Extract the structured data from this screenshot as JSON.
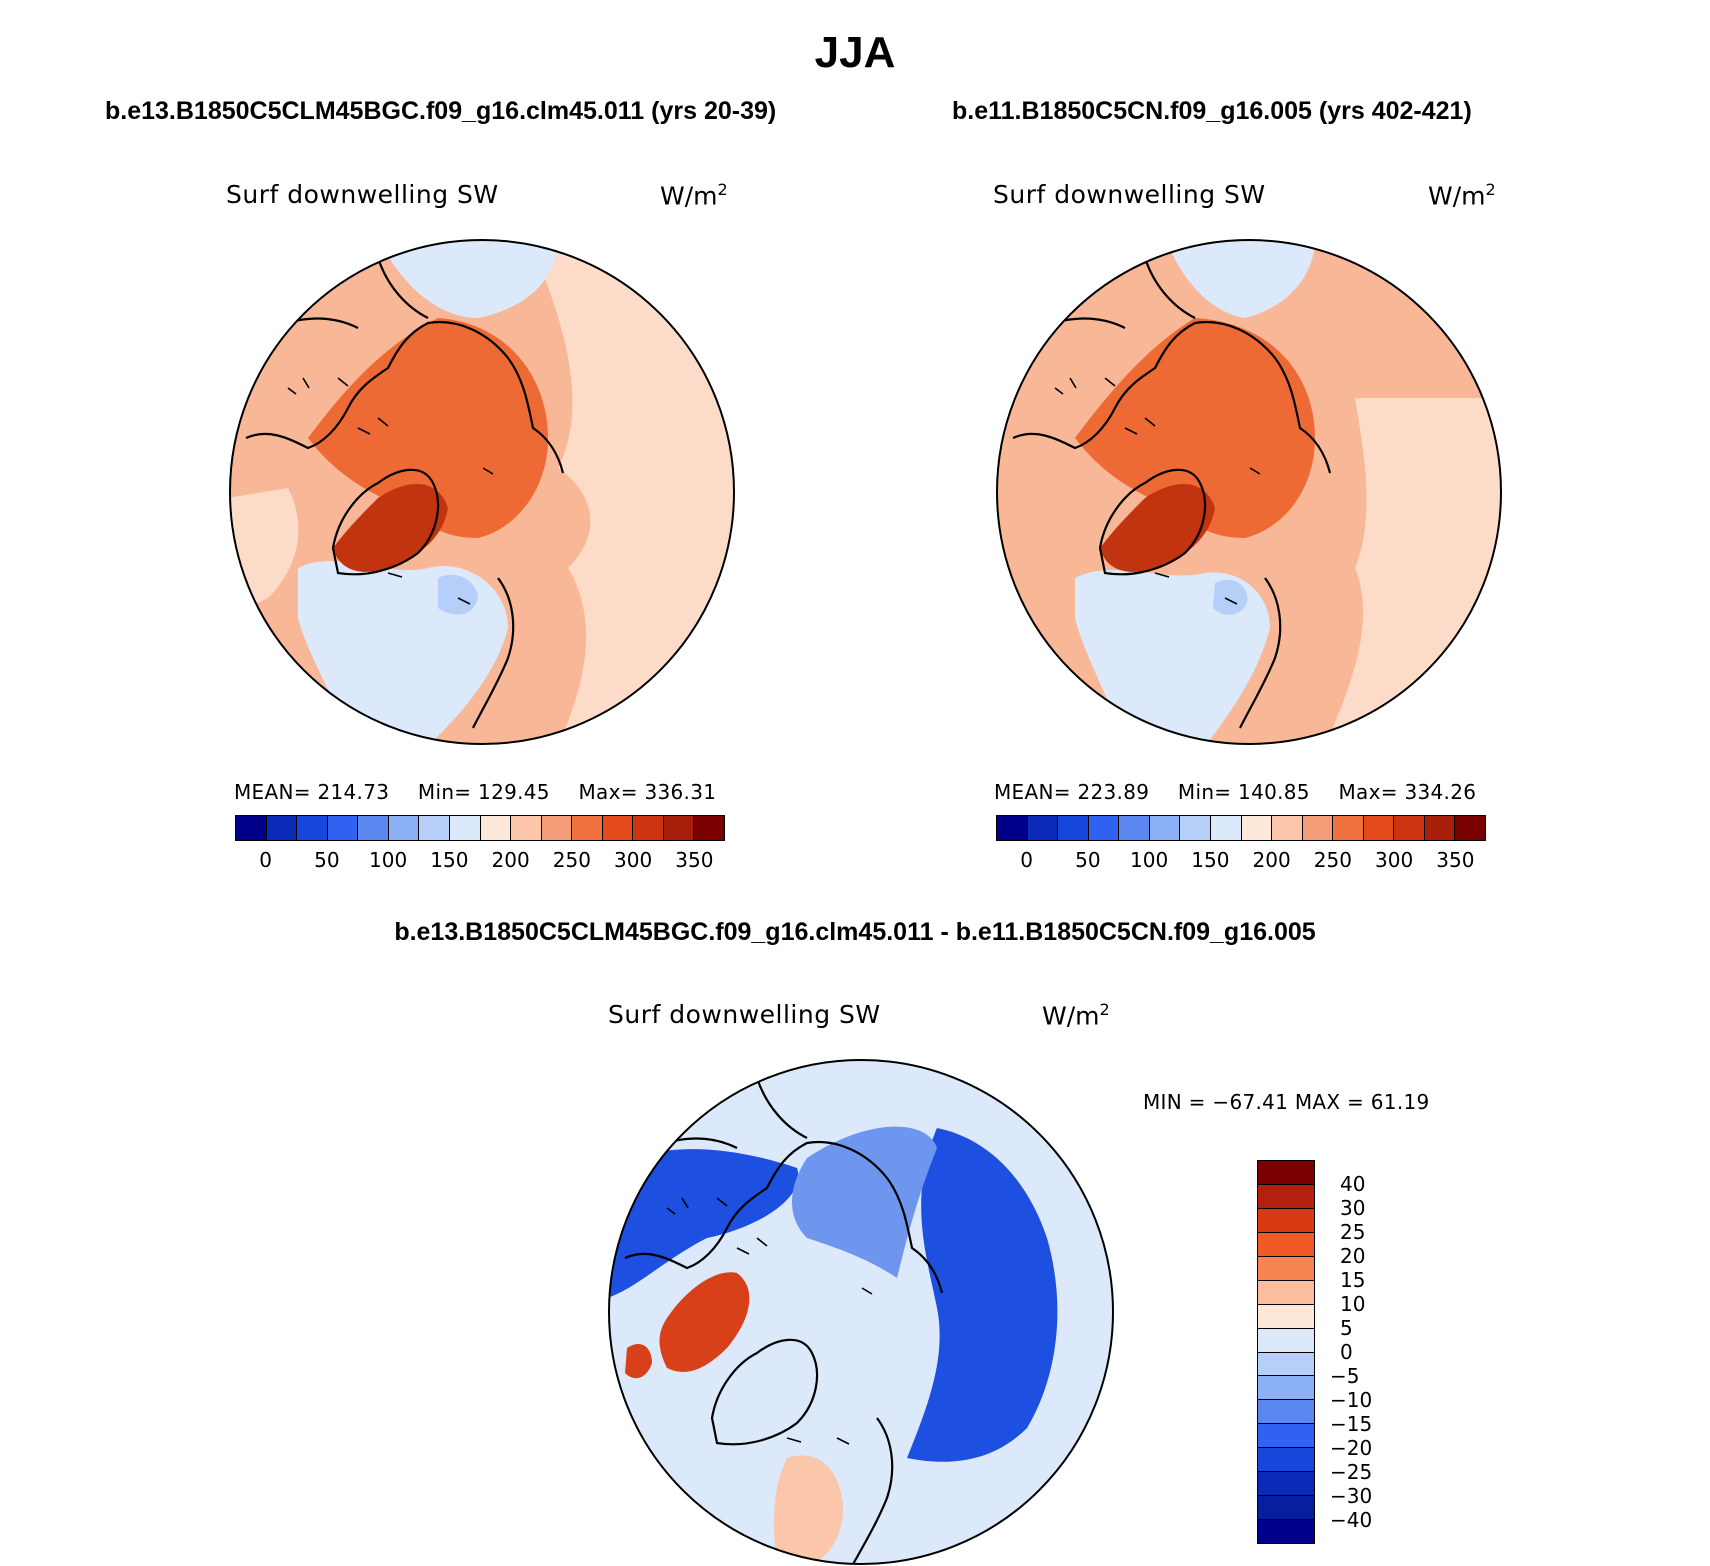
{
  "figure": {
    "season": "JJA",
    "variable": "Surf downwelling SW",
    "units_base": "W/m",
    "units_exp": "2"
  },
  "panels": [
    {
      "title": "b.e13.B1850C5CLM45BGC.f09_g16.clm45.011 (yrs 20-39)",
      "mean_label": "MEAN=",
      "mean_value": "214.73",
      "min_label": "Min=",
      "min_value": "129.45",
      "max_label": "Max=",
      "max_value": "336.31"
    },
    {
      "title": "b.e11.B1850C5CN.f09_g16.005 (yrs 402-421)",
      "mean_label": "MEAN=",
      "mean_value": "223.89",
      "min_label": "Min=",
      "min_value": "140.85",
      "max_label": "Max=",
      "max_value": "334.26"
    }
  ],
  "difference": {
    "title": "b.e13.B1850C5CLM45BGC.f09_g16.clm45.011 - b.e11.B1850C5CN.f09_g16.005",
    "range_text": "MIN = −67.41 MAX =  61.19"
  },
  "colorbar_main": {
    "colors": [
      "#00008b",
      "#0a2ab8",
      "#1646dc",
      "#2f62f0",
      "#5a88f0",
      "#8cb0f5",
      "#b6cff8",
      "#dce9fb",
      "#fde8da",
      "#fbc6aa",
      "#f59d78",
      "#f0733f",
      "#e44a1a",
      "#cc3411",
      "#a71e0b",
      "#7b0000"
    ],
    "labels": [
      "0",
      "50",
      "100",
      "150",
      "200",
      "250",
      "300",
      "350"
    ]
  },
  "colorbar_diff": {
    "colors": [
      "#7b0000",
      "#b3200d",
      "#da3a12",
      "#f05a24",
      "#f68352",
      "#fbbd9d",
      "#fde8da",
      "#dce9fb",
      "#b6cff8",
      "#8cb0f5",
      "#5a88f0",
      "#2f62f0",
      "#1646dc",
      "#0a2ab8",
      "#061f9f",
      "#00008b"
    ],
    "labels": [
      "40",
      "30",
      "25",
      "20",
      "15",
      "10",
      "5",
      "0",
      "−5",
      "−10",
      "−15",
      "−20",
      "−25",
      "−30",
      "−40"
    ]
  },
  "map_fills": {
    "ocean_warm": "#f8b797",
    "ocean_pale": "#fcdcc9",
    "cool_blue": "#dce9fb",
    "mid_blue": "#b6cff8",
    "arctic_orange": "#ee6a35",
    "greenland_dark": "#c2330f",
    "diff_background": "#dce9fb",
    "diff_blue_band": "#1d4fe0",
    "diff_mid": "#6f96ee",
    "diff_red": "#d8401a"
  }
}
